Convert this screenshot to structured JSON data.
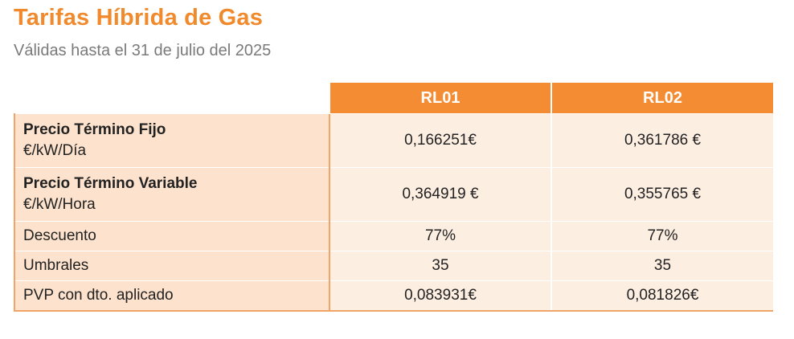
{
  "title": "Tarifas Híbrida de Gas",
  "subtitle": "Válidas hasta el 31 de julio del 2025",
  "table": {
    "columns": [
      "RL01",
      "RL02"
    ],
    "rows": [
      {
        "label": "Precio Término Fijo",
        "sublabel": "€/kW/Día",
        "values": [
          "0,166251€",
          "0,361786 €"
        ]
      },
      {
        "label": "Precio Término Variable",
        "sublabel": "€/kW/Hora",
        "values": [
          "0,364919 €",
          "0,355765 €"
        ]
      },
      {
        "label": "Descuento",
        "values": [
          "77%",
          "77%"
        ]
      },
      {
        "label": "Umbrales",
        "values": [
          "35",
          "35"
        ]
      },
      {
        "label": "PVP con dto. aplicado",
        "values": [
          "0,083931€",
          "0,081826€"
        ]
      }
    ]
  },
  "colors": {
    "accent": "#f48c33",
    "label_bg": "#fde3cd",
    "value_bg": "#fdeee2",
    "subtitle": "#7a7a7a"
  }
}
